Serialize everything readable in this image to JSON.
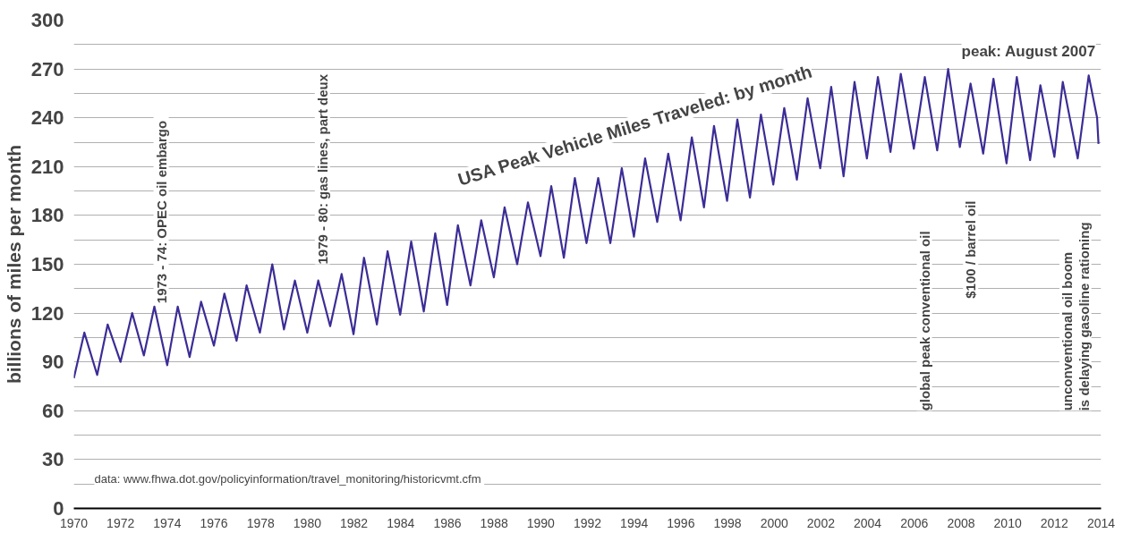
{
  "chart_data": {
    "type": "line",
    "title": "USA Peak Vehicle Miles Traveled: by month",
    "ylabel": "billions of miles per month",
    "x": [
      1970.0,
      1970.45,
      1971.0,
      1971.45,
      1972.0,
      1972.5,
      1973.0,
      1973.45,
      1974.0,
      1974.45,
      1974.96,
      1975.45,
      1976.0,
      1976.45,
      1976.97,
      1977.4,
      1977.97,
      1978.5,
      1979.0,
      1979.47,
      1980.0,
      1980.47,
      1980.98,
      1981.47,
      1981.98,
      1982.43,
      1982.98,
      1983.44,
      1983.98,
      1984.45,
      1984.99,
      1985.48,
      1985.99,
      1986.45,
      1986.99,
      1987.45,
      1987.99,
      1988.45,
      1988.99,
      1989.45,
      1989.99,
      1990.45,
      1990.99,
      1991.46,
      1991.96,
      1992.46,
      1992.98,
      1993.47,
      1993.99,
      1994.47,
      1994.99,
      1995.46,
      1995.99,
      1996.47,
      1996.99,
      1997.42,
      1997.98,
      1998.42,
      1998.96,
      1999.43,
      1999.96,
      2000.43,
      2000.97,
      2001.43,
      2001.97,
      2002.44,
      2002.97,
      2003.44,
      2003.97,
      2004.44,
      2004.98,
      2005.42,
      2005.98,
      2006.45,
      2006.98,
      2007.45,
      2007.95,
      2008.41,
      2008.95,
      2009.39,
      2009.95,
      2010.39,
      2010.96,
      2011.4,
      2012.0,
      2012.36,
      2013.0,
      2013.47,
      2013.83,
      2013.89
    ],
    "series": [
      {
        "color": "#3b2d96",
        "values": [
          80,
          108,
          82,
          113,
          90,
          120,
          94,
          124,
          88,
          124,
          93,
          127,
          100,
          132,
          103,
          137,
          108,
          150,
          110,
          140,
          108,
          140,
          112,
          144,
          107,
          154,
          113,
          158,
          119,
          164,
          121,
          169,
          125,
          174,
          137,
          177,
          142,
          185,
          150,
          188,
          155,
          198,
          154,
          203,
          163,
          203,
          163,
          209,
          167,
          215,
          176,
          218,
          177,
          228,
          185,
          235,
          189,
          239,
          191,
          242,
          199,
          246,
          202,
          252,
          209,
          259,
          204,
          262,
          215,
          265,
          219,
          267,
          221,
          265,
          220,
          270,
          222,
          261,
          218,
          264,
          212,
          265,
          214,
          260,
          216,
          262,
          215,
          266,
          240,
          224
        ]
      }
    ],
    "xlim": [
      1970,
      2014
    ],
    "xticks": [
      1970,
      1972,
      1974,
      1976,
      1978,
      1980,
      1982,
      1984,
      1986,
      1988,
      1990,
      1992,
      1994,
      1996,
      1998,
      2000,
      2002,
      2004,
      2006,
      2008,
      2010,
      2012,
      2014
    ],
    "ylim": [
      0,
      300
    ],
    "yticks": [
      0,
      {
        "value": 15,
        "label": null
      },
      30,
      {
        "value": 45,
        "label": null
      },
      60,
      {
        "value": 75,
        "label": null
      },
      90,
      {
        "value": 105,
        "label": null
      },
      120,
      {
        "value": 135,
        "label": null
      },
      150,
      {
        "value": 165,
        "label": null
      },
      180,
      {
        "value": 195,
        "label": null
      },
      210,
      {
        "value": 225,
        "label": null
      },
      240,
      {
        "value": 255,
        "label": null
      },
      270,
      {
        "value": 285,
        "label": null
      },
      300
    ],
    "grid": "y",
    "marker": "none",
    "line_style": "solid",
    "annotations": [
      "1973 - 74:  OPEC oil embargo",
      "1979 - 80:  gas lines, part deux",
      "global peak conventional oil",
      "$100 / barrel oil",
      "unconventional oil boom\nis delaying gasoline rationing",
      "peak: August 2007",
      "data:  www.fhwa.dot.gov/policyinformation/travel_monitoring/historicvmt.cfm"
    ]
  }
}
